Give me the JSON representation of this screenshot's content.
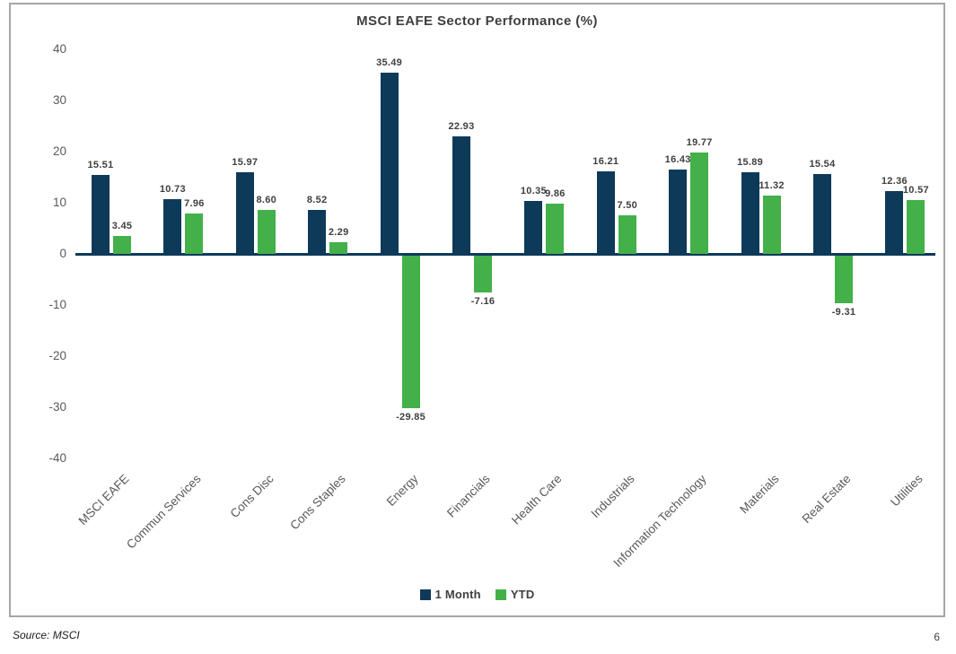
{
  "page": {
    "source_note": "Source: MSCI",
    "page_number": "6"
  },
  "chart_data": {
    "type": "bar",
    "title": "MSCI EAFE Sector Performance (%)",
    "categories": [
      "MSCI EAFE",
      "Commun Services",
      "Cons Disc",
      "Cons Staples",
      "Energy",
      "Financials",
      "Health Care",
      "Industrials",
      "Information Technology",
      "Materials",
      "Real Estate",
      "Utilities"
    ],
    "series": [
      {
        "name": "1 Month",
        "color": "#0e3a5a",
        "values": [
          15.51,
          10.73,
          15.97,
          8.52,
          35.49,
          22.93,
          10.35,
          16.21,
          16.43,
          15.89,
          15.54,
          12.36
        ]
      },
      {
        "name": "YTD",
        "color": "#43b04a",
        "values": [
          3.45,
          7.96,
          8.6,
          2.29,
          -29.85,
          -7.16,
          9.86,
          7.5,
          19.77,
          11.32,
          -9.31,
          10.57
        ]
      }
    ],
    "ylim": [
      -40,
      40
    ],
    "y_tick_step": 10,
    "xlabel": "",
    "ylabel": "",
    "grid": false,
    "legend_position": "bottom",
    "value_label_decimals": 2,
    "axis_line_color": "#0e3a5a"
  }
}
